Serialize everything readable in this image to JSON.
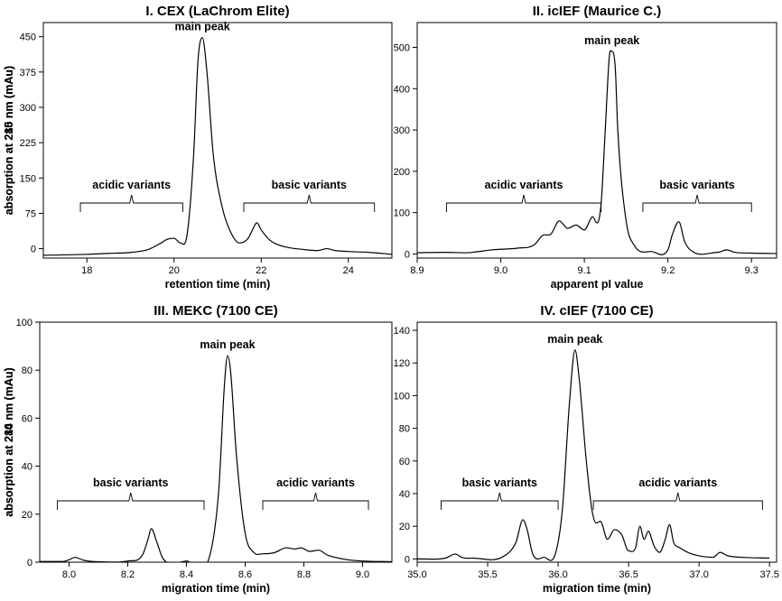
{
  "chart_data": [
    {
      "type": "line",
      "title": "I. CEX (LaChrom Elite)",
      "xlabel": "retention time (min)",
      "ylabel": "absorption at 215 nm (mAu)",
      "xlim": [
        17.0,
        25.0
      ],
      "ylim": [
        -20,
        480
      ],
      "x_ticks": [
        "18",
        "20",
        "22",
        "24"
      ],
      "y_ticks": [
        "0",
        "75",
        "150",
        "225",
        "300",
        "375",
        "450"
      ],
      "grid": false,
      "annotations": [
        {
          "text": "main peak",
          "x": 20.65,
          "y": 448
        },
        {
          "text": "acidic variants",
          "x_from": 17.85,
          "x_to": 20.2
        },
        {
          "text": "basic variants",
          "x_from": 21.6,
          "x_to": 24.6
        }
      ],
      "series": [
        {
          "x": [
            17.0,
            18.0,
            18.5,
            19.0,
            19.4,
            19.7,
            19.85,
            20.0,
            20.15,
            20.3,
            20.45,
            20.55,
            20.65,
            20.75,
            20.9,
            21.1,
            21.3,
            21.5,
            21.7,
            21.8,
            21.9,
            22.0,
            22.2,
            22.5,
            23.0,
            23.3,
            23.5,
            23.7,
            24.0,
            24.5,
            25.0
          ],
          "y": [
            -14,
            -12,
            -10,
            -8,
            -2,
            12,
            20,
            22,
            12,
            30,
            200,
            400,
            448,
            380,
            200,
            90,
            35,
            12,
            22,
            40,
            55,
            40,
            18,
            5,
            -2,
            -4,
            0,
            -4,
            -6,
            -8,
            -12
          ]
        }
      ]
    },
    {
      "type": "line",
      "title": "II. icIEF (Maurice C.)",
      "xlabel": "apparent pI value",
      "ylabel": "absorption at 280 nm (mAu)",
      "xlim": [
        8.9,
        9.33
      ],
      "ylim": [
        -10,
        560
      ],
      "x_ticks": [
        "8.9",
        "9.0",
        "9.1",
        "9.2",
        "9.3"
      ],
      "y_ticks": [
        "0",
        "100",
        "200",
        "300",
        "400",
        "500"
      ],
      "grid": false,
      "annotations": [
        {
          "text": "main peak",
          "x": 9.133,
          "y": 490
        },
        {
          "text": "acidic variants",
          "x_from": 8.935,
          "x_to": 9.12
        },
        {
          "text": "basic variants",
          "x_from": 9.17,
          "x_to": 9.3
        }
      ],
      "series": [
        {
          "x": [
            8.9,
            8.93,
            8.96,
            8.97,
            8.99,
            9.02,
            9.04,
            9.05,
            9.06,
            9.07,
            9.08,
            9.09,
            9.1,
            9.11,
            9.115,
            9.12,
            9.125,
            9.13,
            9.133,
            9.137,
            9.14,
            9.15,
            9.16,
            9.18,
            9.2,
            9.205,
            9.213,
            9.22,
            9.23,
            9.26,
            9.27,
            9.28,
            9.3,
            9.33
          ],
          "y": [
            3,
            4,
            3,
            5,
            10,
            14,
            22,
            45,
            48,
            80,
            62,
            70,
            58,
            90,
            75,
            120,
            300,
            480,
            490,
            450,
            300,
            80,
            20,
            6,
            10,
            45,
            78,
            30,
            5,
            4,
            10,
            4,
            2,
            1
          ]
        }
      ]
    },
    {
      "type": "line",
      "title": "III. MEKC (7100 CE)",
      "xlabel": "migration time (min)",
      "ylabel": "absorption at 214 nm (mAu)",
      "xlim": [
        7.9,
        9.1
      ],
      "ylim": [
        0,
        100
      ],
      "x_ticks": [
        "8.0",
        "8.2",
        "8.4",
        "8.6",
        "8.8",
        "9.0"
      ],
      "y_ticks": [
        "0",
        "20",
        "40",
        "60",
        "80",
        "100"
      ],
      "grid": false,
      "annotations": [
        {
          "text": "main peak",
          "x": 8.54,
          "y": 86
        },
        {
          "text": "basic variants",
          "x_from": 7.96,
          "x_to": 8.46
        },
        {
          "text": "acidic variants",
          "x_from": 8.66,
          "x_to": 9.02
        }
      ],
      "series": [
        {
          "x": [
            7.9,
            7.98,
            8.0,
            8.02,
            8.05,
            8.1,
            8.2,
            8.25,
            8.27,
            8.28,
            8.3,
            8.32,
            8.4,
            8.48,
            8.51,
            8.53,
            8.54,
            8.55,
            8.57,
            8.6,
            8.63,
            8.66,
            8.7,
            8.74,
            8.77,
            8.79,
            8.82,
            8.85,
            8.88,
            8.95,
            9.0,
            9.1
          ],
          "y": [
            0.3,
            0.3,
            1.0,
            2.0,
            0.8,
            0.2,
            0.5,
            3,
            10,
            14,
            8,
            1.5,
            0.5,
            3,
            30,
            75,
            86,
            80,
            45,
            12,
            4,
            3.5,
            4,
            6,
            5.5,
            6,
            4.5,
            5,
            3,
            1,
            0.5,
            0.2
          ]
        }
      ]
    },
    {
      "type": "line",
      "title": "IV. cIEF (7100 CE)",
      "xlabel": "migration time (min)",
      "ylabel": "absorption at 280 nm (mAu)",
      "xlim": [
        35.0,
        37.55
      ],
      "ylim": [
        -2,
        145
      ],
      "x_ticks": [
        "35.0",
        "35.5",
        "36.0",
        "36.5",
        "37.0",
        "37.5"
      ],
      "y_ticks": [
        "0",
        "20",
        "40",
        "60",
        "80",
        "100",
        "120",
        "140"
      ],
      "grid": false,
      "annotations": [
        {
          "text": "main peak",
          "x": 36.12,
          "y": 128
        },
        {
          "text": "basic variants",
          "x_from": 35.17,
          "x_to": 36.0
        },
        {
          "text": "acidic variants",
          "x_from": 36.25,
          "x_to": 37.45
        }
      ],
      "series": [
        {
          "x": [
            35.0,
            35.2,
            35.27,
            35.32,
            35.4,
            35.6,
            35.7,
            35.75,
            35.78,
            35.82,
            35.9,
            35.98,
            36.03,
            36.08,
            36.12,
            36.15,
            36.2,
            36.24,
            36.27,
            36.3,
            36.35,
            36.4,
            36.45,
            36.5,
            36.55,
            36.58,
            36.61,
            36.64,
            36.68,
            36.72,
            36.76,
            36.79,
            36.82,
            36.86,
            36.95,
            37.1,
            37.15,
            37.2,
            37.3,
            37.5
          ],
          "y": [
            0,
            0.5,
            3,
            0.8,
            0.5,
            1,
            10,
            24,
            18,
            3,
            1,
            3,
            30,
            95,
            128,
            110,
            60,
            30,
            22,
            23,
            12,
            18,
            15,
            5,
            7,
            20,
            12,
            17,
            8,
            4,
            12,
            21,
            10,
            7,
            3,
            1,
            4,
            2,
            1,
            0.5
          ]
        }
      ]
    }
  ]
}
